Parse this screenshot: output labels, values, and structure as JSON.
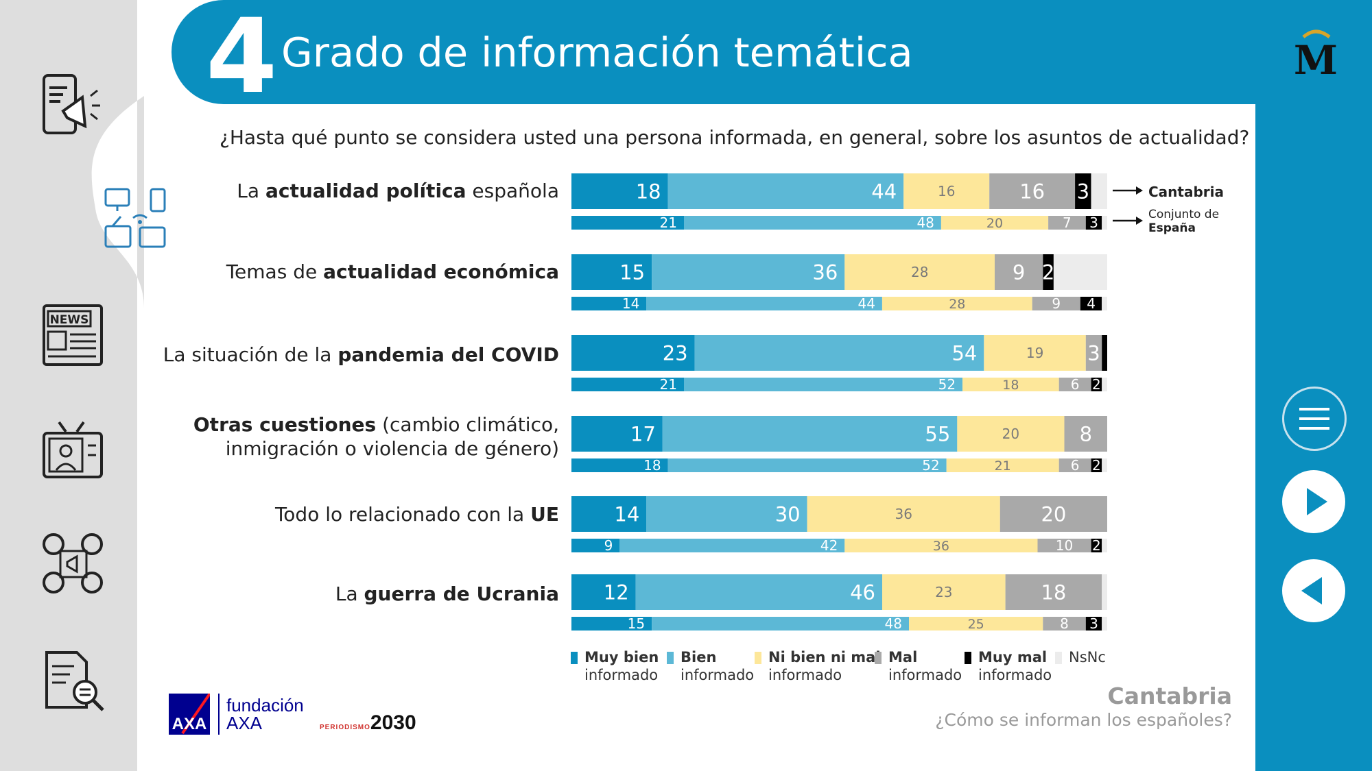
{
  "header": {
    "number": "4",
    "title": "Grado de información temática"
  },
  "question": "¿Hasta qué punto se considera usted una persona informada, en general, sobre los asuntos de actualidad?",
  "series_notes": {
    "main": "Cantabria",
    "sub_line1": "Conjunto de",
    "sub_line2": "España"
  },
  "colors": {
    "muy_bien": "#0a8fbf",
    "bien": "#5cb8d6",
    "ni_bien": "#fde79a",
    "mal": "#a9a9a9",
    "muy_mal": "#000000",
    "nsnc": "#ececec",
    "brand_blue": "#0a8fbf"
  },
  "icons": [
    "megaphone-phone-icon",
    "media-devices-icon",
    "newspaper-icon",
    "tv-presenter-icon",
    "social-media-icon",
    "document-search-icon"
  ],
  "chart_data": {
    "type": "bar",
    "orientation": "horizontal",
    "stacked": true,
    "normalized_to": 100,
    "title": "",
    "xlabel": "",
    "ylabel": "",
    "categories_bold": [
      [
        "La ",
        "actualidad política",
        " española"
      ],
      [
        "Temas de ",
        "actualidad económica",
        ""
      ],
      [
        "La situación de la ",
        "pandemia del COVID",
        ""
      ],
      [
        "",
        "Otras cuestiones",
        " (cambio climático,|inmigración o violencia de género)"
      ],
      [
        "Todo lo relacionado con la ",
        "UE",
        ""
      ],
      [
        "La ",
        "guerra de Ucrania",
        ""
      ]
    ],
    "segment_names": [
      "Muy bien informado",
      "Bien informado",
      "Ni bien ni mal informado",
      "Mal informado",
      "Muy mal informado",
      "NsNc"
    ],
    "series": [
      {
        "name": "Cantabria",
        "values": [
          [
            18,
            44,
            16,
            16,
            3,
            3
          ],
          [
            15,
            36,
            28,
            9,
            2,
            10
          ],
          [
            23,
            54,
            19,
            3,
            1,
            0
          ],
          [
            17,
            55,
            20,
            8,
            0,
            0
          ],
          [
            14,
            30,
            36,
            20,
            0,
            0
          ],
          [
            12,
            46,
            23,
            18,
            0,
            1
          ]
        ],
        "labels": [
          [
            "18",
            "44",
            "16",
            "16",
            "3",
            ""
          ],
          [
            "15",
            "36",
            "28",
            "9",
            "2",
            ""
          ],
          [
            "23",
            "54",
            "19",
            "3",
            "",
            ""
          ],
          [
            "17",
            "55",
            "20",
            "8",
            "",
            ""
          ],
          [
            "14",
            "30",
            "36",
            "20",
            "",
            ""
          ],
          [
            "12",
            "46",
            "23",
            "18",
            "",
            ""
          ]
        ]
      },
      {
        "name": "Conjunto de España",
        "values": [
          [
            21,
            48,
            20,
            7,
            3,
            1
          ],
          [
            14,
            44,
            28,
            9,
            4,
            1
          ],
          [
            21,
            52,
            18,
            6,
            2,
            1
          ],
          [
            18,
            52,
            21,
            6,
            2,
            1
          ],
          [
            9,
            42,
            36,
            10,
            2,
            1
          ],
          [
            15,
            48,
            25,
            8,
            3,
            1
          ]
        ],
        "labels": [
          [
            "21",
            "48",
            "20",
            "7",
            "3",
            ""
          ],
          [
            "14",
            "44",
            "28",
            "9",
            "4",
            ""
          ],
          [
            "21",
            "52",
            "18",
            "6",
            "2",
            ""
          ],
          [
            "18",
            "52",
            "21",
            "6",
            "2",
            ""
          ],
          [
            "9",
            "42",
            "36",
            "10",
            "2",
            ""
          ],
          [
            "15",
            "48",
            "25",
            "8",
            "3",
            ""
          ]
        ]
      }
    ],
    "legend": {
      "placement": "bottom",
      "items": [
        {
          "bold": "Muy bien",
          "rest": "informado",
          "color": "#0a8fbf"
        },
        {
          "bold": "Bien",
          "rest": "informado",
          "color": "#5cb8d6"
        },
        {
          "bold": "Ni bien ni mal",
          "rest": "informado",
          "color": "#fde79a"
        },
        {
          "bold": "Mal",
          "rest": "informado",
          "color": "#a9a9a9"
        },
        {
          "bold": "Muy mal",
          "rest": "informado",
          "color": "#000000"
        },
        {
          "bold": "",
          "rest": "NsNc",
          "color": "#ececec"
        }
      ]
    }
  },
  "footer": {
    "region": "Cantabria",
    "subtitle": "¿Cómo se informan los españoles?",
    "axa_logo_text": "AXA",
    "fundacion_line1": "fundación",
    "fundacion_line2": "AXA",
    "periodismo_small": "PERIODISMO",
    "periodismo_big": "2030"
  }
}
